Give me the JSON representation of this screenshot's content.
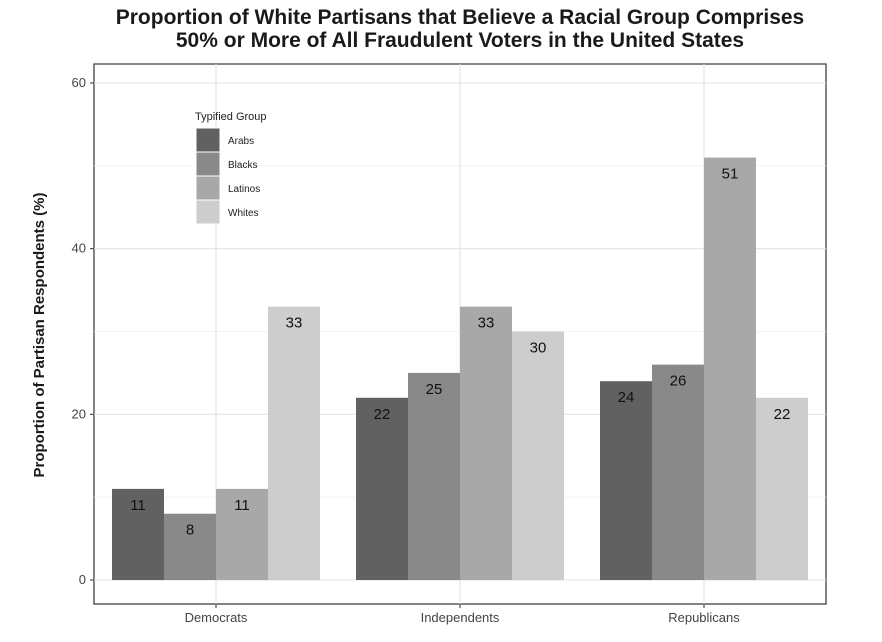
{
  "chart_data": {
    "type": "bar",
    "title_lines": [
      "Proportion of White Partisans that Believe a Racial Group Comprises",
      "50% or More of All Fraudulent Voters in the United States"
    ],
    "xlabel": "",
    "ylabel": "Proportion of Partisan Respondents (%)",
    "categories": [
      "Democrats",
      "Independents",
      "Republicans"
    ],
    "ylim": [
      0,
      60
    ],
    "yticks": [
      0,
      20,
      40,
      60
    ],
    "grid": true,
    "legend": {
      "title": "Typified Group",
      "placement": "top-left"
    },
    "series": [
      {
        "name": "Arabs",
        "color": "#616161",
        "values": [
          11,
          22,
          24
        ]
      },
      {
        "name": "Blacks",
        "color": "#898989",
        "values": [
          8,
          25,
          26
        ]
      },
      {
        "name": "Latinos",
        "color": "#a8a8a8",
        "values": [
          11,
          33,
          51
        ]
      },
      {
        "name": "Whites",
        "color": "#cdcdcd",
        "values": [
          33,
          30,
          22
        ]
      }
    ]
  }
}
